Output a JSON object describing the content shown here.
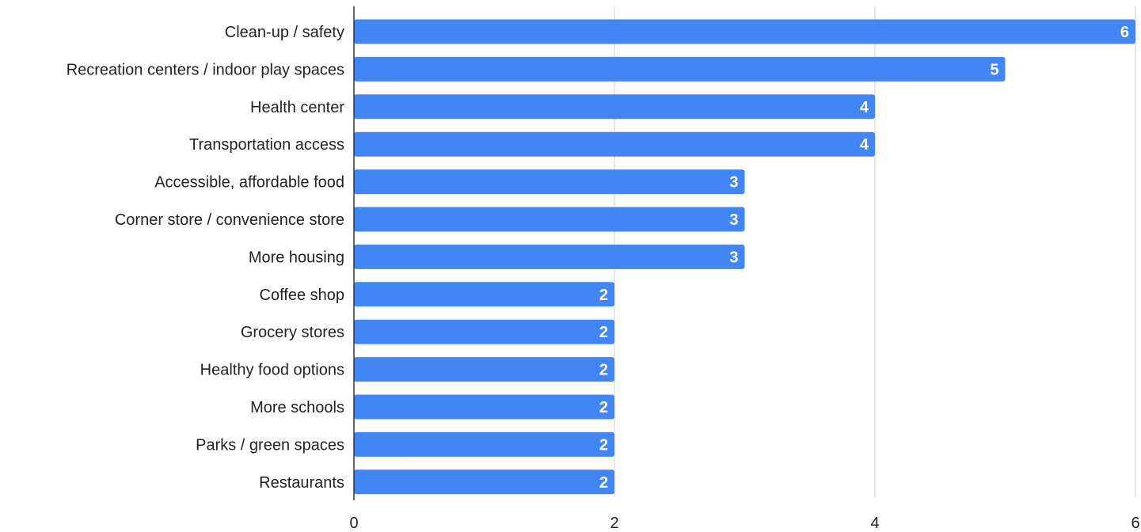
{
  "chart_data": {
    "type": "bar",
    "orientation": "horizontal",
    "title": "",
    "xlabel": "",
    "ylabel": "",
    "categories": [
      "Clean-up / safety",
      "Recreation centers / indoor play spaces",
      "Health center",
      "Transportation access",
      "Accessible, affordable food",
      "Corner store / convenience store",
      "More housing",
      "Coffee shop",
      "Grocery stores",
      "Healthy food options",
      "More schools",
      "Parks / green spaces",
      "Restaurants"
    ],
    "values": [
      6,
      5,
      4,
      4,
      3,
      3,
      3,
      2,
      2,
      2,
      2,
      2,
      2
    ],
    "xlim": [
      0,
      6
    ],
    "xticks": [
      "0",
      "2",
      "4",
      "6"
    ],
    "grid": "vertical gridlines",
    "legend": "none",
    "bar_color": "#4285f4",
    "data_label_color": "#ffffff"
  }
}
